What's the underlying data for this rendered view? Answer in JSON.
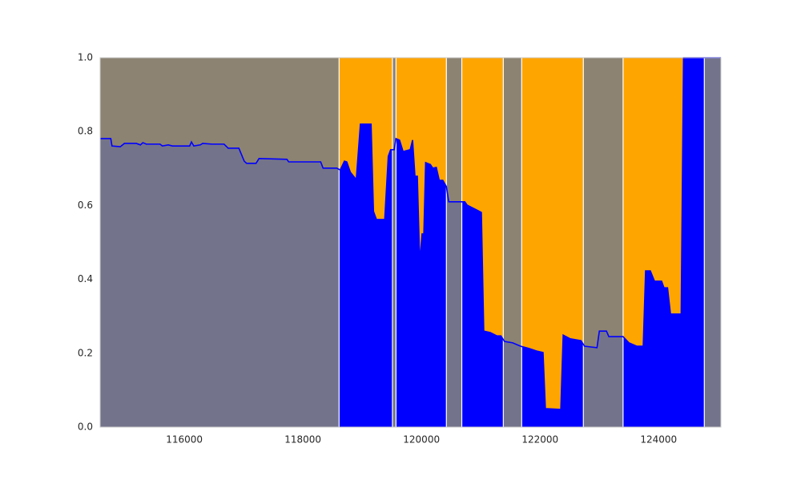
{
  "chart_data": {
    "type": "area",
    "x": [
      114580,
      114760,
      114780,
      114920,
      114990,
      115190,
      115260,
      115300,
      115360,
      115590,
      115630,
      115730,
      115800,
      116090,
      116120,
      116160,
      116270,
      116310,
      116470,
      116670,
      116740,
      116920,
      117010,
      117050,
      117210,
      117260,
      117730,
      117760,
      118300,
      118340,
      118570,
      118630,
      118700,
      118740,
      118800,
      118900,
      118970,
      119150,
      119190,
      119240,
      119380,
      119440,
      119480,
      119540,
      119570,
      119630,
      119690,
      119810,
      119850,
      119890,
      119930,
      119970,
      120010,
      120040,
      120070,
      120150,
      120190,
      120250,
      120300,
      120360,
      120420,
      120460,
      120730,
      120770,
      120930,
      121010,
      121050,
      121160,
      121270,
      121340,
      121400,
      121540,
      121670,
      121810,
      121940,
      122050,
      122090,
      122350,
      122390,
      122510,
      122690,
      122750,
      122960,
      123000,
      123120,
      123160,
      123400,
      123500,
      123630,
      123740,
      123780,
      123860,
      123930,
      124050,
      124090,
      124150,
      124200,
      124380,
      124420,
      125050
    ],
    "values": [
      0.781,
      0.781,
      0.761,
      0.759,
      0.768,
      0.768,
      0.764,
      0.77,
      0.766,
      0.766,
      0.761,
      0.764,
      0.761,
      0.761,
      0.772,
      0.761,
      0.764,
      0.768,
      0.766,
      0.766,
      0.755,
      0.755,
      0.72,
      0.714,
      0.714,
      0.727,
      0.725,
      0.718,
      0.718,
      0.701,
      0.701,
      0.696,
      0.72,
      0.718,
      0.69,
      0.67,
      0.82,
      0.82,
      0.584,
      0.562,
      0.562,
      0.733,
      0.751,
      0.751,
      0.781,
      0.777,
      0.746,
      0.751,
      0.777,
      0.679,
      0.679,
      0.445,
      0.523,
      0.523,
      0.716,
      0.711,
      0.701,
      0.703,
      0.668,
      0.668,
      0.651,
      0.61,
      0.61,
      0.601,
      0.588,
      0.581,
      0.26,
      0.256,
      0.247,
      0.247,
      0.232,
      0.228,
      0.219,
      0.213,
      0.206,
      0.202,
      0.05,
      0.048,
      0.249,
      0.239,
      0.234,
      0.219,
      0.215,
      0.26,
      0.26,
      0.245,
      0.245,
      0.228,
      0.219,
      0.219,
      0.423,
      0.423,
      0.395,
      0.395,
      0.377,
      0.377,
      0.306,
      0.306,
      1.0,
      1.0
    ],
    "color": "#0000ff",
    "above_color": "#ffa500",
    "shade_color": "#7f7f7f",
    "shaded_spans": [
      [
        114580,
        118610
      ],
      [
        119510,
        119570
      ],
      [
        120420,
        120680
      ],
      [
        121380,
        121690
      ],
      [
        122730,
        123400
      ],
      [
        124770,
        125050
      ]
    ],
    "xlim": [
      114580,
      125050
    ],
    "ylim": [
      0,
      1
    ],
    "xticks": [
      116000,
      118000,
      120000,
      122000,
      124000
    ],
    "yticks": [
      {
        "value": 0,
        "label": "0.0"
      },
      0.2,
      0.4,
      0.6,
      0.8,
      {
        "value": 1,
        "label": "1.0"
      }
    ]
  }
}
